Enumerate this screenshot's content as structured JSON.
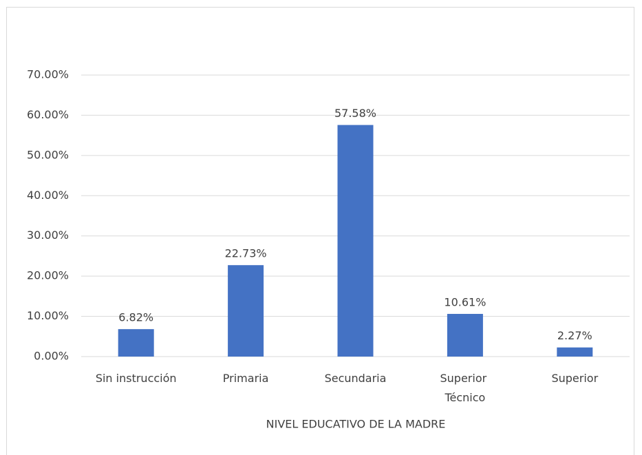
{
  "chart_data": {
    "type": "bar",
    "categories": [
      "Sin instrucción",
      "Primaria",
      "Secundaria",
      "Superior\nTécnico",
      "Superior"
    ],
    "values": [
      6.82,
      22.73,
      57.58,
      10.61,
      2.27
    ],
    "value_labels": [
      "6.82%",
      "22.73%",
      "57.58%",
      "10.61%",
      "2.27%"
    ],
    "color": "#4472c4",
    "x_label": "NIVEL EDUCATIVO DE LA MADRE",
    "ylim": [
      0,
      70
    ],
    "yticks": [
      {
        "value": 0,
        "label": "0.00%"
      },
      {
        "value": 10,
        "label": "10.00%"
      },
      {
        "value": 20,
        "label": "20.00%"
      },
      {
        "value": 30,
        "label": "30.00%"
      },
      {
        "value": 40,
        "label": "40.00%"
      },
      {
        "value": 50,
        "label": "50.00%"
      },
      {
        "value": 60,
        "label": "60.00%"
      },
      {
        "value": 70,
        "label": "70.00%"
      }
    ],
    "grid": true
  }
}
